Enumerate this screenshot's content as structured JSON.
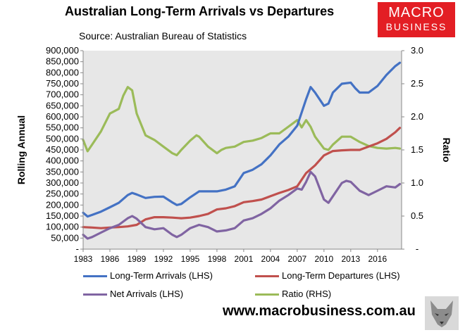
{
  "header": {
    "title": "Australian Long-Term Arrivals vs Departures",
    "subtitle": "Source: Australian Bureau of Statistics",
    "logo_line1": "MACRO",
    "logo_line2": "BUSINESS"
  },
  "footer": {
    "website": "www.macrobusiness.com.au"
  },
  "chart_data": {
    "type": "line",
    "title": "Australian Long-Term Arrivals vs Departures",
    "subtitle": "Source: Australian Bureau of Statistics",
    "ylabel": "Rolling Annual",
    "y2label": "Ratio",
    "ylim": [
      0,
      900000
    ],
    "y2lim": [
      0.0,
      3.0
    ],
    "yticks": [
      "-",
      "50,000",
      "100,000",
      "150,000",
      "200,000",
      "250,000",
      "300,000",
      "350,000",
      "400,000",
      "450,000",
      "500,000",
      "550,000",
      "600,000",
      "650,000",
      "700,000",
      "750,000",
      "800,000",
      "850,000",
      "900,000"
    ],
    "y2ticks": [
      "-",
      "0.5",
      "1.0",
      "1.5",
      "2.0",
      "2.5",
      "3.0"
    ],
    "xlim": [
      1983,
      2018.7
    ],
    "xticks": [
      "1983",
      "1986",
      "1989",
      "1992",
      "1995",
      "1998",
      "2001",
      "2004",
      "2007",
      "2010",
      "2013",
      "2016"
    ],
    "grid": false,
    "legend_position": "bottom",
    "colors": {
      "arrivals": "#4472c4",
      "departures": "#c0504d",
      "net": "#8064a2",
      "ratio": "#9bbb59"
    },
    "series": [
      {
        "name": "Long-Term Arrivals (LHS)",
        "axis": "left",
        "color": "#4472c4",
        "x": [
          1983,
          1983.5,
          1984,
          1985,
          1986,
          1987,
          1988,
          1988.5,
          1989,
          1990,
          1991,
          1992,
          1993,
          1993.5,
          1994,
          1995,
          1996,
          1997,
          1998,
          1999,
          2000,
          2001,
          2002,
          2003,
          2004,
          2005,
          2006,
          2007,
          2008,
          2008.5,
          2009,
          2010,
          2010.5,
          2011,
          2012,
          2013,
          2013.5,
          2014,
          2015,
          2016,
          2017,
          2018,
          2018.5
        ],
        "y": [
          165000,
          148000,
          155000,
          170000,
          190000,
          210000,
          245000,
          255000,
          248000,
          232000,
          237000,
          238000,
          212000,
          200000,
          205000,
          235000,
          262000,
          262000,
          262000,
          270000,
          285000,
          345000,
          360000,
          385000,
          425000,
          475000,
          510000,
          560000,
          680000,
          735000,
          710000,
          650000,
          660000,
          710000,
          750000,
          755000,
          730000,
          710000,
          710000,
          740000,
          790000,
          830000,
          845000
        ]
      },
      {
        "name": "Long-Term Departures (LHS)",
        "axis": "left",
        "color": "#c0504d",
        "x": [
          1983,
          1984,
          1985,
          1986,
          1987,
          1988,
          1989,
          1990,
          1991,
          1992,
          1993,
          1994,
          1995,
          1996,
          1997,
          1998,
          1999,
          2000,
          2001,
          2002,
          2003,
          2004,
          2005,
          2006,
          2007,
          2008,
          2009,
          2010,
          2011,
          2012,
          2013,
          2014,
          2015,
          2016,
          2017,
          2018,
          2018.5
        ],
        "y": [
          100000,
          98000,
          95000,
          98000,
          100000,
          103000,
          110000,
          135000,
          145000,
          145000,
          143000,
          140000,
          143000,
          150000,
          160000,
          180000,
          185000,
          195000,
          213000,
          218000,
          225000,
          240000,
          255000,
          268000,
          285000,
          345000,
          380000,
          425000,
          445000,
          448000,
          450000,
          450000,
          465000,
          480000,
          500000,
          530000,
          550000
        ]
      },
      {
        "name": "Net Arrivals (LHS)",
        "axis": "left",
        "color": "#8064a2",
        "x": [
          1983,
          1983.5,
          1984,
          1985,
          1986,
          1987,
          1988,
          1988.5,
          1989,
          1990,
          1991,
          1992,
          1993,
          1993.5,
          1994,
          1995,
          1996,
          1997,
          1998,
          1999,
          2000,
          2001,
          2002,
          2003,
          2004,
          2005,
          2006,
          2007,
          2007.5,
          2008,
          2008.5,
          2009,
          2010,
          2010.5,
          2011,
          2012,
          2012.5,
          2013,
          2014,
          2015,
          2016,
          2017,
          2018,
          2018.5
        ],
        "y": [
          65000,
          48000,
          55000,
          75000,
          95000,
          110000,
          140000,
          150000,
          138000,
          100000,
          90000,
          95000,
          65000,
          55000,
          65000,
          95000,
          110000,
          100000,
          80000,
          85000,
          95000,
          130000,
          140000,
          160000,
          185000,
          220000,
          245000,
          275000,
          270000,
          305000,
          350000,
          330000,
          225000,
          210000,
          240000,
          300000,
          310000,
          305000,
          265000,
          245000,
          265000,
          285000,
          280000,
          295000
        ]
      },
      {
        "name": "Ratio (RHS)",
        "axis": "right",
        "color": "#9bbb59",
        "x": [
          1983,
          1983.5,
          1984,
          1985,
          1986,
          1987,
          1987.5,
          1988,
          1988.5,
          1989,
          1990,
          1991,
          1992,
          1993,
          1993.5,
          1994,
          1995,
          1995.7,
          1996,
          1997,
          1998,
          1998.5,
          1999,
          2000,
          2001,
          2002,
          2003,
          2004,
          2005,
          2006,
          2007,
          2007.5,
          2008,
          2008.5,
          2009,
          2010,
          2010.5,
          2011,
          2012,
          2013,
          2014,
          2015,
          2016,
          2017,
          2018,
          2018.5
        ],
        "y": [
          1.65,
          1.48,
          1.58,
          1.78,
          2.05,
          2.12,
          2.32,
          2.45,
          2.4,
          2.05,
          1.72,
          1.65,
          1.55,
          1.45,
          1.42,
          1.5,
          1.64,
          1.72,
          1.7,
          1.55,
          1.45,
          1.5,
          1.53,
          1.55,
          1.62,
          1.64,
          1.68,
          1.75,
          1.75,
          1.85,
          1.95,
          1.84,
          1.95,
          1.85,
          1.7,
          1.52,
          1.5,
          1.58,
          1.7,
          1.7,
          1.62,
          1.56,
          1.53,
          1.52,
          1.53,
          1.52
        ]
      }
    ]
  }
}
